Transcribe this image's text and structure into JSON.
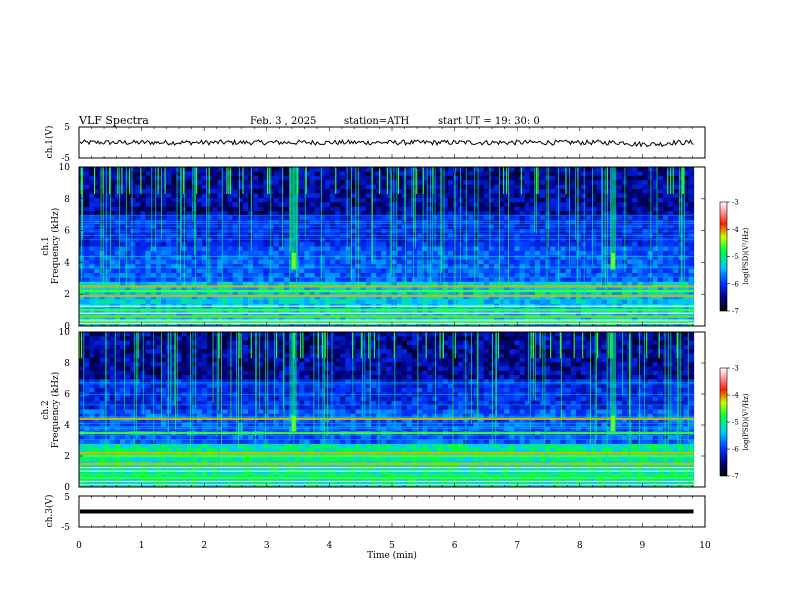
{
  "header": {
    "title": "VLF  Spectra",
    "date": "Feb. 3 , 2025",
    "station": "station=ATH",
    "start": "start  UT  =   19: 30: 0"
  },
  "chart_data": [
    {
      "type": "line",
      "name": "ch1-waveform",
      "ylabel": "ch.1(V)",
      "ylim": [
        -5,
        5
      ],
      "yticks": [
        "5",
        "-5"
      ],
      "xlim": [
        0,
        10
      ],
      "x_extent": [
        0,
        9.82
      ],
      "approx_level": 0,
      "approx_amplitude": 0.8
    },
    {
      "type": "heatmap",
      "name": "ch1-spectrogram",
      "ylabel_top": "ch.1",
      "ylabel": "Frequency  (kHz)",
      "ylim": [
        0,
        10
      ],
      "yticks": [
        "0",
        "2",
        "4",
        "6",
        "8",
        "10"
      ],
      "xlim": [
        0,
        10
      ],
      "x_extent": [
        0,
        9.82
      ],
      "colorbar": {
        "label": "log(PSD)(V²/Hz)",
        "range": [
          -7,
          -3
        ],
        "ticks": [
          "-3",
          "-4",
          "-5",
          "-6",
          "-7"
        ]
      },
      "bright_bands_khz": [
        0.25,
        0.6,
        1.0,
        1.9,
        2.2,
        2.5
      ],
      "bursts_min": [
        3.43,
        8.53
      ]
    },
    {
      "type": "heatmap",
      "name": "ch2-spectrogram",
      "ylabel_top": "ch.2",
      "ylabel": "Frequency  (kHz)",
      "ylim": [
        0,
        10
      ],
      "yticks": [
        "0",
        "2",
        "4",
        "6",
        "8",
        "10"
      ],
      "xlim": [
        0,
        10
      ],
      "x_extent": [
        0,
        9.82
      ],
      "colorbar": {
        "label": "log(PSD)(V²/Hz)",
        "range": [
          -7,
          -3
        ],
        "ticks": [
          "-3",
          "-4",
          "-5",
          "-6",
          "-7"
        ]
      },
      "bright_bands_khz": [
        0.6,
        1.5,
        2.0,
        2.2,
        3.5,
        4.4
      ],
      "bursts_min": [
        3.43,
        8.53
      ]
    },
    {
      "type": "line",
      "name": "ch3-waveform",
      "ylabel": "ch.3(V)",
      "ylim": [
        -5,
        5
      ],
      "yticks": [
        "5",
        "-5"
      ],
      "xlim": [
        0,
        10
      ],
      "x_extent": [
        0,
        9.82
      ],
      "approx_level": 0,
      "xlabel": "Time  (min)",
      "xticks": [
        "0",
        "1",
        "2",
        "3",
        "4",
        "5",
        "6",
        "7",
        "8",
        "9",
        "10"
      ]
    }
  ]
}
